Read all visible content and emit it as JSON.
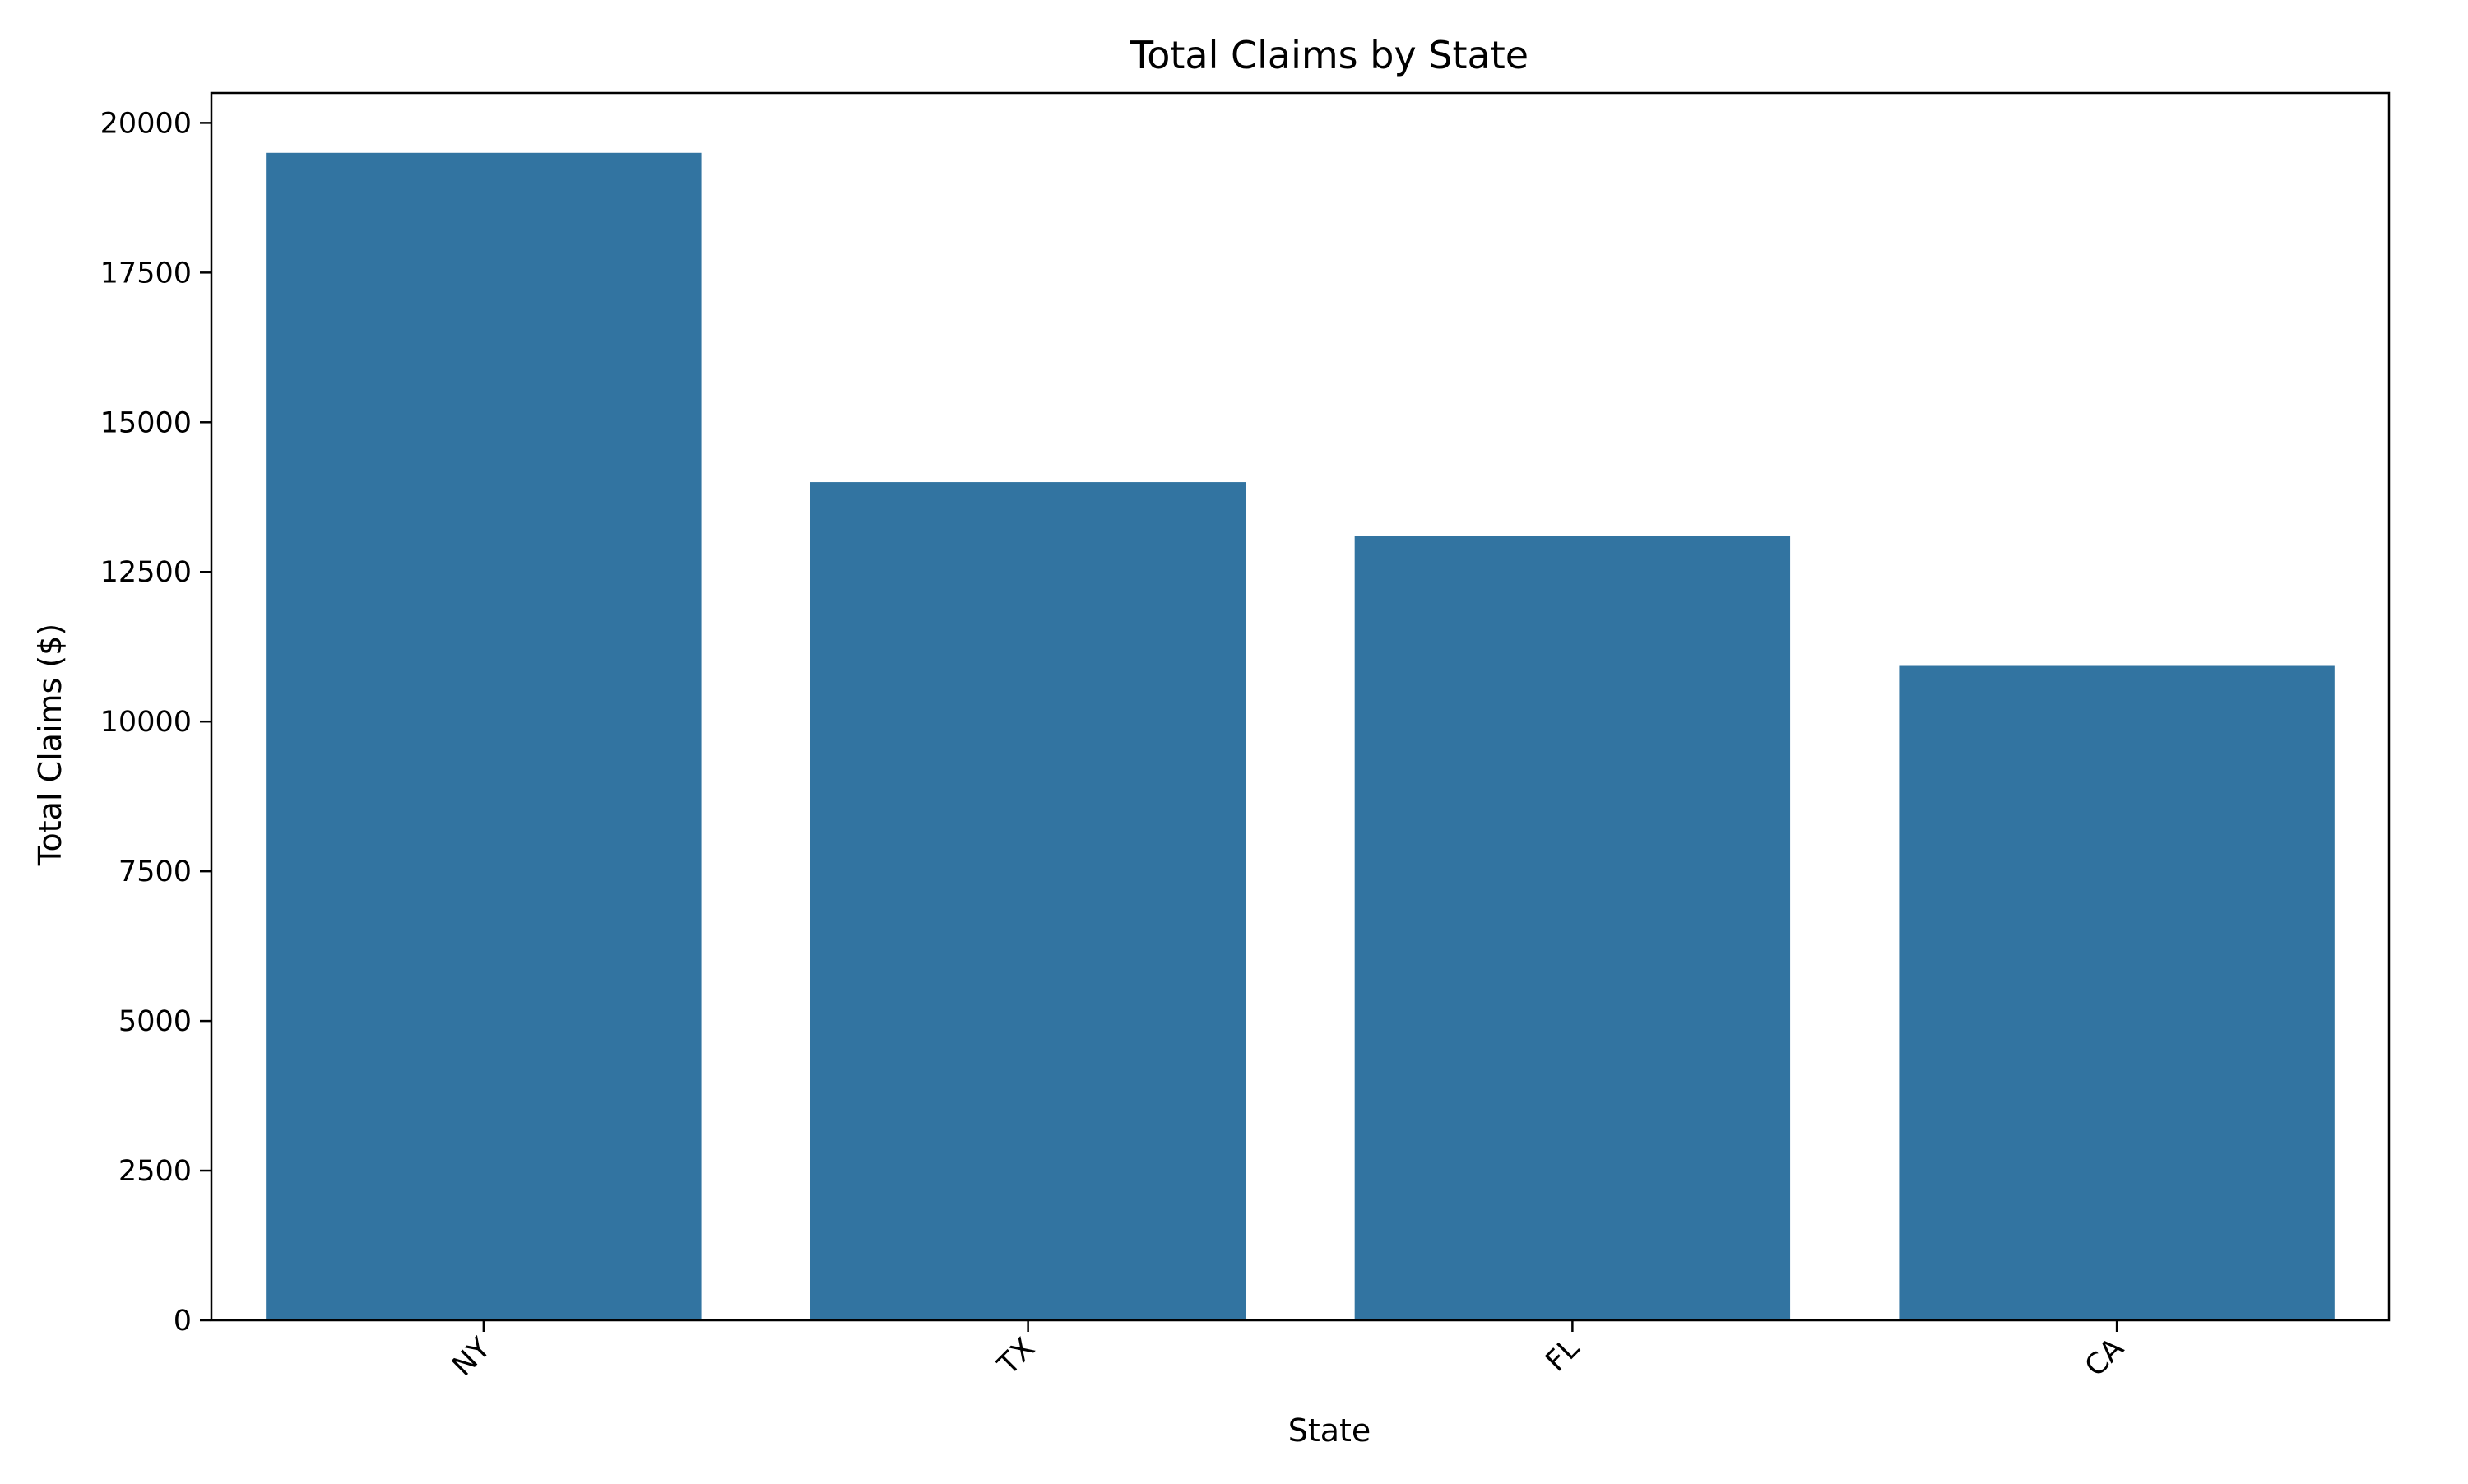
{
  "chart_data": {
    "type": "bar",
    "title": "Total Claims by State",
    "xlabel": "State",
    "ylabel": "Total Claims ($)",
    "categories": [
      "NY",
      "TX",
      "FL",
      "CA"
    ],
    "values": [
      19500,
      14000,
      13100,
      10930
    ],
    "ylim": [
      0,
      20500
    ],
    "yticks": [
      0,
      2500,
      5000,
      7500,
      10000,
      12500,
      15000,
      17500,
      20000
    ],
    "xtick_rotation_deg": 45,
    "grid": false,
    "legend": "none",
    "colors": {
      "bar": "#3274a1",
      "axis": "#000000",
      "background": "#ffffff"
    }
  }
}
